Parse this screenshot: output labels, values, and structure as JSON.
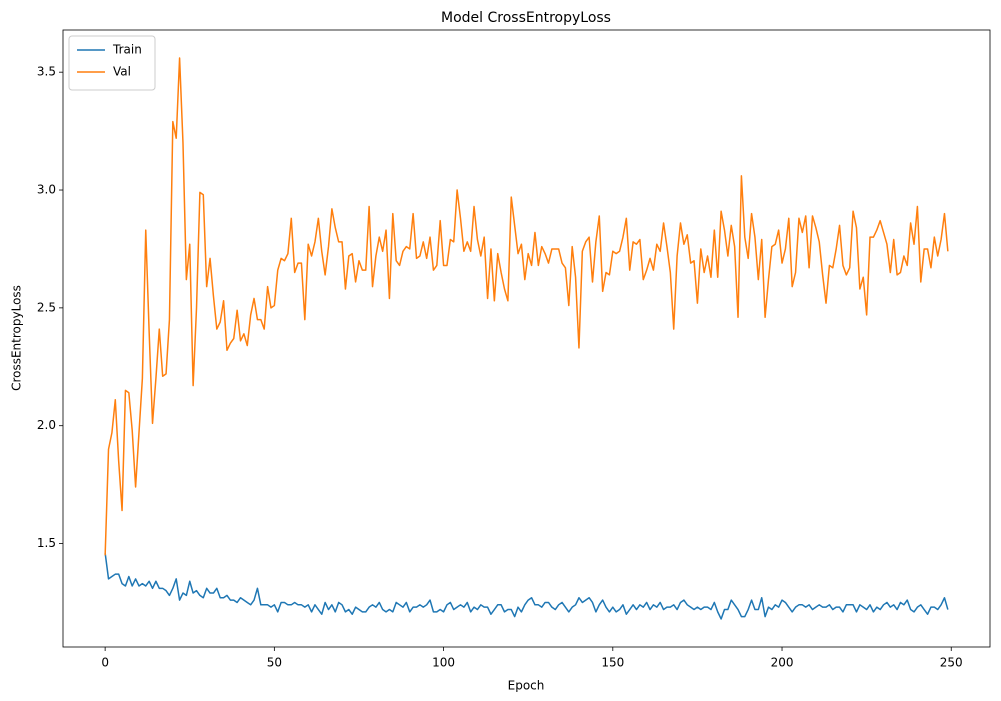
{
  "chart_data": {
    "type": "line",
    "title": "Model CrossEntropyLoss",
    "x_label": "Epoch",
    "y_label": "CrossEntropyLoss",
    "x": [
      0,
      1,
      2,
      3,
      4,
      5,
      6,
      7,
      8,
      9,
      10,
      11,
      12,
      13,
      14,
      15,
      16,
      17,
      18,
      19,
      20,
      21,
      22,
      23,
      24,
      25,
      26,
      27,
      28,
      29,
      30,
      31,
      32,
      33,
      34,
      35,
      36,
      37,
      38,
      39,
      40,
      41,
      42,
      43,
      44,
      45,
      46,
      47,
      48,
      49,
      50,
      51,
      52,
      53,
      54,
      55,
      56,
      57,
      58,
      59,
      60,
      61,
      62,
      63,
      64,
      65,
      66,
      67,
      68,
      69,
      70,
      71,
      72,
      73,
      74,
      75,
      76,
      77,
      78,
      79,
      80,
      81,
      82,
      83,
      84,
      85,
      86,
      87,
      88,
      89,
      90,
      91,
      92,
      93,
      94,
      95,
      96,
      97,
      98,
      99,
      100,
      101,
      102,
      103,
      104,
      105,
      106,
      107,
      108,
      109,
      110,
      111,
      112,
      113,
      114,
      115,
      116,
      117,
      118,
      119,
      120,
      121,
      122,
      123,
      124,
      125,
      126,
      127,
      128,
      129,
      130,
      131,
      132,
      133,
      134,
      135,
      136,
      137,
      138,
      139,
      140,
      141,
      142,
      143,
      144,
      145,
      146,
      147,
      148,
      149,
      150,
      151,
      152,
      153,
      154,
      155,
      156,
      157,
      158,
      159,
      160,
      161,
      162,
      163,
      164,
      165,
      166,
      167,
      168,
      169,
      170,
      171,
      172,
      173,
      174,
      175,
      176,
      177,
      178,
      179,
      180,
      181,
      182,
      183,
      184,
      185,
      186,
      187,
      188,
      189,
      190,
      191,
      192,
      193,
      194,
      195,
      196,
      197,
      198,
      199,
      200,
      201,
      202,
      203,
      204,
      205,
      206,
      207,
      208,
      209,
      210,
      211,
      212,
      213,
      214,
      215,
      216,
      217,
      218,
      219,
      220,
      221,
      222,
      223,
      224,
      225,
      226,
      227,
      228,
      229,
      230,
      231,
      232,
      233,
      234,
      235,
      236,
      237,
      238,
      239,
      240,
      241,
      242,
      243,
      244,
      245,
      246,
      247,
      248,
      249
    ],
    "series": [
      {
        "name": "Train",
        "color": "#1f77b4",
        "values": [
          1.46,
          1.35,
          1.36,
          1.37,
          1.37,
          1.33,
          1.32,
          1.36,
          1.32,
          1.35,
          1.32,
          1.33,
          1.32,
          1.34,
          1.31,
          1.34,
          1.31,
          1.31,
          1.3,
          1.28,
          1.31,
          1.35,
          1.26,
          1.29,
          1.28,
          1.34,
          1.29,
          1.3,
          1.28,
          1.27,
          1.31,
          1.29,
          1.29,
          1.31,
          1.27,
          1.27,
          1.28,
          1.26,
          1.26,
          1.25,
          1.27,
          1.26,
          1.25,
          1.24,
          1.26,
          1.31,
          1.24,
          1.24,
          1.24,
          1.23,
          1.24,
          1.21,
          1.25,
          1.25,
          1.24,
          1.24,
          1.25,
          1.24,
          1.24,
          1.23,
          1.24,
          1.21,
          1.24,
          1.22,
          1.2,
          1.25,
          1.22,
          1.24,
          1.21,
          1.25,
          1.24,
          1.21,
          1.22,
          1.2,
          1.23,
          1.22,
          1.21,
          1.21,
          1.23,
          1.24,
          1.23,
          1.25,
          1.22,
          1.21,
          1.22,
          1.21,
          1.25,
          1.24,
          1.23,
          1.25,
          1.21,
          1.23,
          1.23,
          1.24,
          1.23,
          1.24,
          1.26,
          1.21,
          1.21,
          1.22,
          1.21,
          1.24,
          1.25,
          1.22,
          1.23,
          1.24,
          1.23,
          1.25,
          1.21,
          1.23,
          1.22,
          1.24,
          1.23,
          1.23,
          1.2,
          1.22,
          1.24,
          1.24,
          1.21,
          1.22,
          1.22,
          1.19,
          1.23,
          1.21,
          1.24,
          1.26,
          1.27,
          1.24,
          1.24,
          1.23,
          1.25,
          1.25,
          1.23,
          1.22,
          1.24,
          1.25,
          1.23,
          1.21,
          1.23,
          1.24,
          1.27,
          1.25,
          1.26,
          1.27,
          1.25,
          1.21,
          1.24,
          1.26,
          1.23,
          1.21,
          1.23,
          1.21,
          1.22,
          1.24,
          1.2,
          1.22,
          1.24,
          1.22,
          1.24,
          1.23,
          1.25,
          1.22,
          1.24,
          1.23,
          1.25,
          1.22,
          1.23,
          1.23,
          1.24,
          1.22,
          1.25,
          1.26,
          1.24,
          1.23,
          1.22,
          1.23,
          1.22,
          1.23,
          1.23,
          1.22,
          1.25,
          1.21,
          1.18,
          1.22,
          1.22,
          1.26,
          1.24,
          1.22,
          1.19,
          1.19,
          1.22,
          1.26,
          1.22,
          1.22,
          1.27,
          1.19,
          1.23,
          1.22,
          1.24,
          1.23,
          1.26,
          1.25,
          1.23,
          1.21,
          1.23,
          1.24,
          1.24,
          1.23,
          1.24,
          1.22,
          1.23,
          1.24,
          1.23,
          1.23,
          1.24,
          1.22,
          1.23,
          1.23,
          1.21,
          1.24,
          1.24,
          1.24,
          1.21,
          1.24,
          1.23,
          1.22,
          1.24,
          1.21,
          1.23,
          1.22,
          1.24,
          1.25,
          1.23,
          1.24,
          1.22,
          1.25,
          1.24,
          1.26,
          1.22,
          1.21,
          1.23,
          1.24,
          1.22,
          1.2,
          1.23,
          1.23,
          1.22,
          1.24,
          1.27,
          1.22
        ]
      },
      {
        "name": "Val",
        "color": "#ff7f0e",
        "values": [
          1.45,
          1.9,
          1.97,
          2.11,
          1.85,
          1.64,
          2.15,
          2.14,
          1.98,
          1.74,
          1.97,
          2.2,
          2.83,
          2.4,
          2.01,
          2.2,
          2.41,
          2.21,
          2.22,
          2.45,
          3.29,
          3.22,
          3.56,
          3.2,
          2.62,
          2.77,
          2.17,
          2.5,
          2.99,
          2.98,
          2.59,
          2.71,
          2.55,
          2.41,
          2.44,
          2.53,
          2.32,
          2.35,
          2.37,
          2.49,
          2.36,
          2.39,
          2.34,
          2.47,
          2.54,
          2.45,
          2.45,
          2.41,
          2.59,
          2.5,
          2.51,
          2.66,
          2.71,
          2.7,
          2.73,
          2.88,
          2.65,
          2.69,
          2.69,
          2.45,
          2.77,
          2.72,
          2.78,
          2.88,
          2.74,
          2.64,
          2.76,
          2.92,
          2.84,
          2.78,
          2.78,
          2.58,
          2.72,
          2.73,
          2.61,
          2.7,
          2.66,
          2.66,
          2.93,
          2.59,
          2.72,
          2.8,
          2.74,
          2.83,
          2.54,
          2.9,
          2.7,
          2.68,
          2.74,
          2.76,
          2.75,
          2.9,
          2.71,
          2.72,
          2.78,
          2.71,
          2.8,
          2.66,
          2.68,
          2.87,
          2.68,
          2.68,
          2.79,
          2.78,
          3.0,
          2.88,
          2.74,
          2.78,
          2.74,
          2.93,
          2.79,
          2.72,
          2.8,
          2.54,
          2.75,
          2.53,
          2.73,
          2.65,
          2.58,
          2.53,
          2.97,
          2.85,
          2.73,
          2.77,
          2.62,
          2.73,
          2.68,
          2.82,
          2.68,
          2.76,
          2.73,
          2.69,
          2.75,
          2.75,
          2.75,
          2.69,
          2.67,
          2.51,
          2.76,
          2.63,
          2.33,
          2.74,
          2.78,
          2.8,
          2.61,
          2.78,
          2.89,
          2.57,
          2.65,
          2.64,
          2.74,
          2.73,
          2.74,
          2.8,
          2.88,
          2.66,
          2.78,
          2.77,
          2.79,
          2.62,
          2.66,
          2.71,
          2.66,
          2.77,
          2.74,
          2.86,
          2.76,
          2.65,
          2.41,
          2.72,
          2.86,
          2.77,
          2.81,
          2.69,
          2.7,
          2.52,
          2.75,
          2.65,
          2.72,
          2.63,
          2.83,
          2.63,
          2.91,
          2.83,
          2.72,
          2.85,
          2.76,
          2.46,
          3.06,
          2.8,
          2.71,
          2.9,
          2.8,
          2.62,
          2.79,
          2.46,
          2.62,
          2.76,
          2.77,
          2.83,
          2.69,
          2.75,
          2.88,
          2.59,
          2.65,
          2.88,
          2.82,
          2.89,
          2.67,
          2.89,
          2.84,
          2.78,
          2.64,
          2.52,
          2.68,
          2.67,
          2.75,
          2.85,
          2.68,
          2.64,
          2.67,
          2.91,
          2.84,
          2.58,
          2.63,
          2.47,
          2.8,
          2.8,
          2.83,
          2.87,
          2.82,
          2.77,
          2.65,
          2.79,
          2.64,
          2.65,
          2.72,
          2.68,
          2.86,
          2.77,
          2.93,
          2.61,
          2.75,
          2.75,
          2.67,
          2.8,
          2.72,
          2.79,
          2.9,
          2.74
        ]
      }
    ],
    "xlim": [
      -12.45,
      261.45
    ],
    "xticks": [
      0,
      50,
      100,
      150,
      200,
      250
    ],
    "ylim": [
      1.061,
      3.679
    ],
    "yticks": [
      1.5,
      {
        "value": 2,
        "label": "2.0"
      },
      2.5,
      {
        "value": 3,
        "label": "3.0"
      },
      3.5
    ],
    "grid": false,
    "legend": "upper left"
  }
}
